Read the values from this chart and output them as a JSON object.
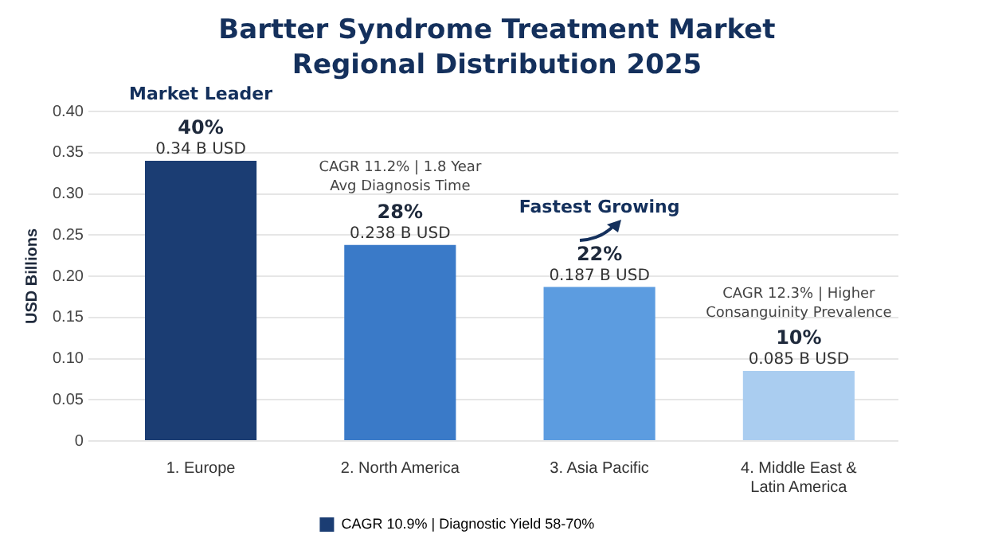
{
  "chart_data": {
    "type": "bar",
    "title": "Bartter Syndrome Treatment Market\nRegional Distribution 2025",
    "ylabel": "USD Billions",
    "categories": [
      "1. Europe",
      "2. North America",
      "3. Asia Pacific",
      "4. Middle East &\nLatin America"
    ],
    "series": [
      {
        "name": "CAGR 10.9% | Diagnostic Yield 58-70%",
        "color": "#1b3d73",
        "colors": [
          "#1b3d73",
          "#3a7ac8",
          "#5c9ce0",
          "#aacdf0"
        ],
        "values": [
          0.34,
          0.238,
          0.187,
          0.085
        ],
        "value_labels": [
          "0.34 B USD",
          "0.238 B USD",
          "0.187 B USD",
          "0.085 B USD"
        ]
      }
    ],
    "ylim": [
      0,
      0.4
    ],
    "yticks": [
      {
        "value": 0,
        "label": "0"
      },
      {
        "value": 0.05,
        "label": "0.05"
      },
      {
        "value": 0.1,
        "label": "0.10"
      },
      {
        "value": 0.15,
        "label": "0.15"
      },
      {
        "value": 0.2,
        "label": "0.20"
      },
      {
        "value": 0.25,
        "label": "0.25"
      },
      {
        "value": 0.3,
        "label": "0.30"
      },
      {
        "value": 0.35,
        "label": "0.35"
      },
      {
        "value": 0.4,
        "label": "0.40"
      }
    ],
    "grid": "y",
    "legend": "bottom",
    "annotations": [
      {
        "text": "40%",
        "x": "1. Europe",
        "y": 0.34
      },
      "Market Leader",
      {
        "text": "28%",
        "x": "2. North America",
        "y": 0.238
      },
      "CAGR 11.2% | 1.8 Year\nAvg Diagnosis Time",
      {
        "text": "22%",
        "x": "3. Asia Pacific",
        "y": 0.187
      },
      "Fastest Growing",
      {
        "text": "10%",
        "x": "4. Middle East &\nLatin America",
        "y": 0.085
      },
      "CAGR 12.3% | Higher\nConsanguinity Prevalence"
    ]
  }
}
